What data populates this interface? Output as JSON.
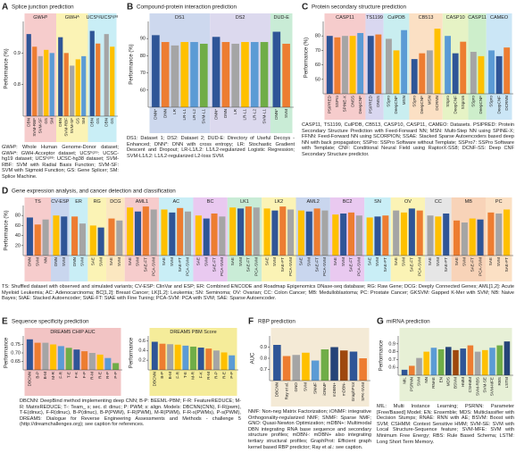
{
  "chart_data": [
    {
      "type": "bar",
      "panel": "A",
      "heading": "Splice junction prediction",
      "ylabel": "Performance (%)",
      "ylim": [
        0.7,
        1.0
      ],
      "yticks": [
        0.8,
        0.9
      ],
      "palette": [
        "#2f5597",
        "#ed7d31",
        "#a5a5a5",
        "#ffc000",
        "#5b9bd5"
      ],
      "groups": [
        {
          "name": "GWHᴰ",
          "color": "#f6cccc",
          "categories": [
            "DBN",
            "SVM-RBF",
            "SVM-SF",
            "GS",
            "SM"
          ],
          "values": [
            0.96,
            0.92,
            0.89,
            0.91,
            0.9
          ]
        },
        {
          "name": "GWHᴬ",
          "color": "#fbf3b5",
          "categories": [
            "DBN",
            "SVM-RBF",
            "SVM-SF",
            "GS",
            "SM"
          ],
          "values": [
            0.95,
            0.9,
            0.86,
            0.88,
            0.89
          ]
        },
        {
          "name": "UCSʰᵍ¹⁹",
          "color": "#c9eef6",
          "categories": [
            "DBN",
            "GS"
          ],
          "values": [
            0.97,
            0.93
          ]
        },
        {
          "name": "UCSʰᵍ³⁸",
          "color": "#c9eef6",
          "categories": [
            "DBN",
            "GS"
          ],
          "values": [
            0.96,
            0.92
          ]
        }
      ],
      "caption": "GWHᴰ: Whole Human Genome-Donor dataset; GWHᴬ: GWH-Acceptor dataset; UCSʰᵍ¹⁹: UCSC-hg19 dataset; UCSʰᵍ³⁸: UCSC-hg38 dataset; SVM-RBF: SVM with Radial Basis Function; SVM-SF: SVM with Sigmoid Function; GS: Gene Splicer; SM: Splice Machine."
    },
    {
      "type": "bar",
      "panel": "B",
      "heading": "Compound-protein interaction prediction",
      "ylabel": "Performance (%)",
      "ylim": [
        50,
        100
      ],
      "yticks": [
        60,
        70,
        80,
        90
      ],
      "palette": [
        "#2f5597",
        "#ed7d31",
        "#a5a5a5",
        "#ffc000",
        "#5b9bd5",
        "#70ad47"
      ],
      "groups": [
        {
          "name": "DS1",
          "color": "#cdd8ee",
          "categories": [
            "DNN*",
            "DNN",
            "LR",
            "LR-L1",
            "LR-L2",
            "SVM-L1"
          ],
          "values": [
            92,
            88,
            86,
            88,
            88,
            87
          ]
        },
        {
          "name": "DS2",
          "color": "#dcd9ee",
          "categories": [
            "DNN*",
            "DNN",
            "LR",
            "LR-L1",
            "LR-L2",
            "SVM-L1"
          ],
          "values": [
            91,
            88,
            87,
            88,
            88,
            88
          ]
        },
        {
          "name": "DUD-E",
          "color": "#c9ecd6",
          "categories": [
            "DNN*",
            "SVM"
          ],
          "values": [
            94,
            87
          ]
        }
      ],
      "caption": "DS1: Dataset 1; DS2: Dataset 2; DUD-E: Directory of Useful Decoys - Enhanced; DNN*: DNN with cross entropy; LR: Stochastic Gradient Descent and Dropout; LR-L1/L2: L1/L2-regularized Logistic Regression; SVM-L1/L2: L1/L2-regularized L2-loss SVM."
    },
    {
      "type": "bar",
      "panel": "C",
      "heading": "Protein secondary structure prediction",
      "ylabel": "Performance (%)",
      "ylim": [
        40,
        90
      ],
      "yticks": [
        50,
        60,
        70,
        80
      ],
      "palette": [
        "#2f5597",
        "#ed7d31",
        "#a5a5a5",
        "#ffc000",
        "#5b9bd5"
      ],
      "groups": [
        {
          "name": "CASP11",
          "color": "#f6cccc",
          "categories": [
            "PSIPRED",
            "SSPro",
            "SPINE-X",
            "DNSS",
            "DeepCNF"
          ],
          "values": [
            80,
            79,
            80,
            80,
            82
          ]
        },
        {
          "name": "TS1199",
          "color": "#d9d7f0",
          "categories": [
            "PSIPRED",
            "DNSS"
          ],
          "values": [
            80,
            81
          ]
        },
        {
          "name": "CulPDB",
          "color": "#c9eef0",
          "categories": [
            "SSpro",
            "DeepCNF",
            "MSN"
          ],
          "values": [
            78,
            70,
            84
          ]
        },
        {
          "name": "CB513",
          "color": "#fbe0c4",
          "categories": [
            "SSpro",
            "DeepCNF",
            "MSN",
            "DCRNN"
          ],
          "values": [
            64,
            68,
            70,
            85
          ]
        },
        {
          "name": "CASP10",
          "color": "#e6f3c5",
          "categories": [
            "SSpro",
            "DeepCNF",
            "SSpro5"
          ],
          "values": [
            80,
            68,
            76
          ]
        },
        {
          "name": "CASP11",
          "color": "#cdeecb",
          "categories": [
            "SSpro",
            "DeepCNF"
          ],
          "values": [
            69,
            66
          ]
        },
        {
          "name": "CAMEO",
          "color": "#cbe6f6",
          "categories": [
            "SSpro",
            "DeepCNF",
            "DCRNN"
          ],
          "values": [
            70,
            66,
            72
          ]
        }
      ],
      "caption": "CASP11, TS1199, CulPDB, CB513, CASP10, CASP11, CAMEO: Datasets. PSIPRED: Protein Secondary Structure Prediction with Feed-Forward NN; MSN: Multi-Step NN using SPINE-X; FFNN: Feed-Forward NN using SCORPION; SSAE: Stacked Sparse Autoencoders based deep NN with back propagation; SSPro: SSPro Software without Template; SSPro7: SSPro Software with Template; CNF: Conditional Neural Field using RaptorX-SS8; DCNF-SS: Deep CNF Secondary Structure predictor."
    },
    {
      "type": "bar",
      "panel": "D",
      "heading": "Gene expression analysis, and cancer detection and classification",
      "ylabel": "Performance (%)",
      "ylim": [
        0,
        100
      ],
      "yticks": [
        20,
        40,
        60,
        80
      ],
      "palette": [
        "#2f5597",
        "#ed7d31",
        "#a5a5a5",
        "#ffc000"
      ],
      "groups": [
        {
          "name": "TS",
          "color": "#f6cccc",
          "categories": [
            "DNN",
            "SVM",
            "NN"
          ],
          "values": [
            76,
            62,
            72
          ]
        },
        {
          "name": "CV-ESP",
          "color": "#c9d6ee",
          "categories": [
            "DNN",
            "SVM"
          ],
          "values": [
            80,
            78
          ]
        },
        {
          "name": "ER",
          "color": "#c9eef6",
          "categories": [
            "DNN",
            "SVM"
          ],
          "values": [
            78,
            64
          ]
        },
        {
          "name": "RG",
          "color": "#fbf3b5",
          "categories": [
            "SAE",
            "SVM"
          ],
          "values": [
            60,
            56
          ]
        },
        {
          "name": "DCG",
          "color": "#fbe7c0",
          "categories": [
            "SAE",
            "SVM"
          ],
          "values": [
            74,
            70
          ]
        },
        {
          "name": "AML1",
          "color": "#f6cccc",
          "categories": [
            "SAE",
            "SVM",
            "SAE-FT",
            "PCA-SVM"
          ],
          "values": [
            96,
            88,
            98,
            92
          ]
        },
        {
          "name": "AC",
          "color": "#c9eef6",
          "categories": [
            "SAE",
            "SVM",
            "SAE-FT",
            "PCA-SVM"
          ],
          "values": [
            92,
            86,
            95,
            88
          ]
        },
        {
          "name": "BC",
          "color": "#e9c9f0",
          "categories": [
            "SAE",
            "SVM",
            "SAE-FT",
            "PCA-SVM"
          ],
          "values": [
            80,
            74,
            84,
            78
          ]
        },
        {
          "name": "LK1",
          "color": "#c9ecd6",
          "categories": [
            "SAE",
            "SVM",
            "SAE-FT",
            "PCA-SVM"
          ],
          "values": [
            96,
            94,
            98,
            96
          ]
        },
        {
          "name": "LK2",
          "color": "#fbf3b5",
          "categories": [
            "SAE",
            "SVM",
            "SAE-FT",
            "PCA-SVM"
          ],
          "values": [
            94,
            90,
            98,
            92
          ]
        },
        {
          "name": "AML2",
          "color": "#c9d6ee",
          "categories": [
            "SAE",
            "SVM",
            "SAE-FT",
            "PCA-SVM"
          ],
          "values": [
            90,
            88,
            94,
            90
          ]
        },
        {
          "name": "BC2",
          "color": "#e9c9f0",
          "categories": [
            "SAE",
            "SVM",
            "SAE-FT",
            "PCA-SVM"
          ],
          "values": [
            82,
            84,
            86,
            80
          ]
        },
        {
          "name": "SN",
          "color": "#c9eef6",
          "categories": [
            "SAE",
            "SVM",
            "SAE-FT"
          ],
          "values": [
            76,
            78,
            80
          ]
        },
        {
          "name": "OV",
          "color": "#fbf3b5",
          "categories": [
            "SAE",
            "SVM",
            "SAE-FT",
            "PCA-SVM"
          ],
          "values": [
            90,
            86,
            94,
            90
          ]
        },
        {
          "name": "CC",
          "color": "#e6e6e6",
          "categories": [
            "SAE",
            "SVM",
            "SAE-FT"
          ],
          "values": [
            80,
            78,
            84
          ]
        },
        {
          "name": "MB",
          "color": "#f8d3b8",
          "categories": [
            "SAE",
            "SVM",
            "SAE-FT",
            "PCA-SVM"
          ],
          "values": [
            70,
            66,
            74,
            72
          ]
        },
        {
          "name": "PC",
          "color": "#fbe0c4",
          "categories": [
            "SAE",
            "SVM",
            "SAE-FT"
          ],
          "values": [
            86,
            84,
            92
          ]
        }
      ],
      "caption": "TS: Shuffled dataset with observed and simulated variants; CV-ESP: ClinVar and ESP; ER: Combined ENCODE and Roadmap Epigenomics DNase-seq database; RG: Raw Gene; DCG: Deeply Connected Genes; AML[1,2]: Acute Myeloid Leukemia; AC: Adenocarcinoma; BC[1,2]: Breast Cancer; LK[1,2]: Leukemia; SN: Seminoma; OV: Ovarian; CC: Colon Cancer; MB: Medulloblastoma; PC: Prostate Cancer; GKSVM: Gapped K-Mer with SVM; NB: Naive Bayes; StAE: Stacked Autoencoder; StAE-FT: StAE with Fine Tuning; PCA-SVM: PCA with SVM; SAE: Sparse Autoencoder."
    },
    {
      "type": "bar",
      "panel": "E",
      "heading": "Sequence specificity prediction",
      "ylabel": "Performance",
      "ylim": [
        0.6,
        0.8
      ],
      "yticks": [
        0.65,
        {
          "value": 0.7,
          "label": "0.70"
        },
        0.75
      ],
      "palette": [
        "#2f5597",
        "#ed7d31",
        "#a5a5a5",
        "#ffc000",
        "#5b9bd5",
        "#70ad47"
      ],
      "groups": [
        {
          "name": "DREAM5 CHIP AUC",
          "color": "#f2c4c4",
          "categories": [
            "DBCNN",
            "B-P",
            "B-M",
            "M-R",
            "F-R",
            "T-E",
            "F-K",
            "F-P",
            "R-M",
            "R-E",
            "R-P",
            "P-P"
          ],
          "values": [
            0.78,
            0.76,
            0.76,
            0.75,
            0.74,
            0.73,
            0.72,
            0.71,
            0.7,
            0.69,
            0.67,
            0.64
          ]
        }
      ],
      "caption": "DBCNN: DeepBind method implementing deep CNN; B-P: BEEML-PBM; F-R: FeatureREDUCE; M-R: MatrixREDUCE; T-: Team_ s; sec. d: dinuc; P: PWM; s: align. Models: DBCNN(CNN), F-R(pwm), T-E(dinuc), F-R(dinuc), B-P(dinuc), B-P(PWM), F-R(PWM), M-R(PWM), F-R-s(PWMs), P-s(PWM), DREAM5: Dialogue for Reverse Engineering Assessments and Methods - challenge 5 (http://dreamchallenges.org); see caption for references."
    },
    {
      "type": "bar",
      "ylabel": "Performance",
      "ylim": [
        0,
        0.7
      ],
      "yticks": [
        0.2,
        0.4,
        0.6
      ],
      "palette": [
        "#2f5597",
        "#ed7d31",
        "#a5a5a5",
        "#ffc000",
        "#5b9bd5",
        "#70ad47"
      ],
      "groups": [
        {
          "name": "DREAM5 PBM Score",
          "color": "#f5ec9a",
          "categories": [
            "DBCNN",
            "B-P",
            "B-M",
            "F-R",
            "T-E",
            "M-R",
            "F-K",
            "R-M",
            "R-P",
            "R-E",
            "P-P"
          ],
          "values": [
            0.58,
            0.54,
            0.53,
            0.52,
            0.5,
            0.48,
            0.46,
            0.44,
            0.4,
            0.36,
            0.3
          ]
        }
      ]
    },
    {
      "type": "bar",
      "panel": "F",
      "heading": "RBP prediction",
      "ylabel": "AUC",
      "ylim": [
        0.6,
        1.0
      ],
      "yticks": [
        0.7,
        0.8,
        0.9
      ],
      "palette": [
        "#2f5597",
        "#ed7d31",
        "#a5a5a5",
        "#ffc000",
        "#5b9bd5",
        "#70ad47",
        "#264478",
        "#9e480e"
      ],
      "groups": [
        {
          "color": "#f4ead6",
          "categories": [
            "DBCNN",
            "Ray et al.",
            "GNO",
            "SVM",
            "SNMF",
            "iONMF",
            "mDBN+",
            "mDBN-",
            "GraphProt",
            "SPK-SVM"
          ],
          "values": [
            0.92,
            0.82,
            0.83,
            0.85,
            0.78,
            0.88,
            0.9,
            0.87,
            0.86,
            0.8
          ]
        }
      ],
      "caption": "NMF: Non-neg Matrix Factorization; iONMF: integrative Orthogonality-regularized NMF; SNMF: Sparse NMF; GNO: Quasi-Newton Optimization; mDBN+: Multimodal DBN integrating RNA base sequence and secondary structure profiles; mDBN-: mDBN+ also integrating tertiary structural profiles; GraphProt: Efficient graph kernel based RBP predictor; Ray et al.: see caption."
    },
    {
      "type": "bar",
      "panel": "G",
      "heading": "miRNA prediction",
      "ylabel": "Performance",
      "ylim": [
        0.5,
        1.0
      ],
      "yticks": [
        0.6,
        0.7,
        0.8,
        0.9
      ],
      "palette": [
        "#2f5597",
        "#ed7d31",
        "#a5a5a5",
        "#ffc000",
        "#5b9bd5",
        "#70ad47",
        "#264478",
        "#9e480e"
      ],
      "groups": [
        {
          "color": "#e7f0d6",
          "categories": [
            "MIL",
            "PSRNN",
            "SVM",
            "NN",
            "RNAE",
            "EN",
            "MDS",
            "BSVM",
            "HMM",
            "CSHMM",
            "SVM-RBS",
            "SVM-SE",
            "SVM-MFE",
            "RBS",
            "LSTM"
          ],
          "values": [
            0.57,
            0.62,
            0.72,
            0.8,
            0.85,
            0.83,
            0.86,
            0.82,
            0.84,
            0.88,
            0.8,
            0.82,
            0.85,
            0.88,
            0.93
          ]
        }
      ],
      "caption": "MIL: Multi Instance Learning; PSRNN: Parameter [Free/Based] Model; EN: Ensemble; MDS: Multiclassifier with Decision Stumps; RNAE: RNN with AE; BSVM: Boost with SVM; CSHMM: Context Sensitive HMM; SVM-SE: SVM with Local Structure-Sequence feature; SVM-MFE: SVM with Minimum Free Energy; RBS: Rule Based Schema; LSTM: Long Short Term Memory."
    }
  ]
}
